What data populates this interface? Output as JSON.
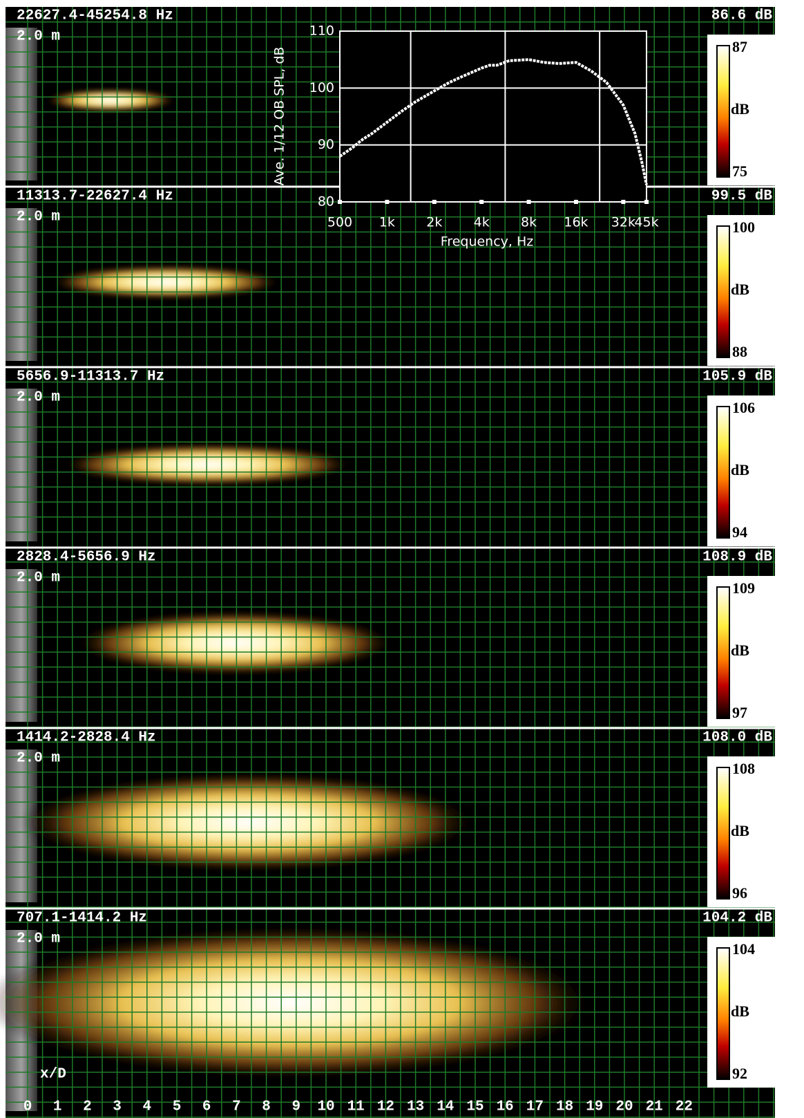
{
  "panels": [
    {
      "band": "22627.4-45254.8 Hz",
      "level": "86.6 dB",
      "distance": "2.0 m",
      "colorbar": {
        "max": 87,
        "unit": "dB",
        "min": 75
      }
    },
    {
      "band": "11313.7-22627.4 Hz",
      "level": "99.5 dB",
      "distance": "2.0 m",
      "colorbar": {
        "max": 100,
        "unit": "dB",
        "min": 88
      }
    },
    {
      "band": "5656.9-11313.7 Hz",
      "level": "105.9 dB",
      "distance": "2.0 m",
      "colorbar": {
        "max": 106,
        "unit": "dB",
        "min": 94
      }
    },
    {
      "band": "2828.4-5656.9 Hz",
      "level": "108.9 dB",
      "distance": "2.0 m",
      "colorbar": {
        "max": 109,
        "unit": "dB",
        "min": 97
      }
    },
    {
      "band": "1414.2-2828.4 Hz",
      "level": "108.0 dB",
      "distance": "2.0 m",
      "colorbar": {
        "max": 108,
        "unit": "dB",
        "min": 96
      }
    },
    {
      "band": "707.1-1414.2 Hz",
      "level": "104.2 dB",
      "distance": "2.0 m",
      "colorbar": {
        "max": 104,
        "unit": "dB",
        "min": 92
      }
    }
  ],
  "xd_axis": {
    "label": "x/D",
    "ticks": [
      0,
      1,
      2,
      3,
      4,
      5,
      6,
      7,
      8,
      9,
      10,
      11,
      12,
      13,
      14,
      15,
      16,
      17,
      18,
      19,
      20,
      21,
      22
    ]
  },
  "chart_data": {
    "type": "line",
    "ylabel": "Ave. 1/12 OB SPL, dB",
    "xlabel": "Frequency, Hz",
    "color": "#ffffff",
    "log_x": true,
    "grid": true,
    "x": [
      500,
      600,
      700,
      800,
      1000,
      1250,
      1500,
      2000,
      2500,
      3000,
      4000,
      4500,
      5000,
      6000,
      8000,
      10000,
      12500,
      16000,
      20000,
      25000,
      32000,
      38000,
      42000,
      45000
    ],
    "values": [
      88,
      89.5,
      91,
      92,
      94,
      96,
      97.5,
      99.5,
      101,
      102,
      103.5,
      104,
      104,
      104.8,
      105,
      104.5,
      104.3,
      104.5,
      103,
      101,
      97,
      92,
      87,
      83
    ],
    "xlim": [
      500,
      45000
    ],
    "ylim": [
      80,
      110
    ],
    "xticks": [
      500,
      {
        "value": 1000,
        "label": "1k"
      },
      {
        "value": 2000,
        "label": "2k"
      },
      {
        "value": 4000,
        "label": "4k"
      },
      {
        "value": 8000,
        "label": "8k"
      },
      {
        "value": 16000,
        "label": "16k"
      },
      {
        "value": 32000,
        "label": "32k"
      },
      {
        "value": 45000,
        "label": "45k"
      }
    ],
    "xgrid": [
      1414.2,
      5656.9,
      22627.4
    ],
    "yticks": [
      80,
      90,
      100,
      110
    ]
  }
}
